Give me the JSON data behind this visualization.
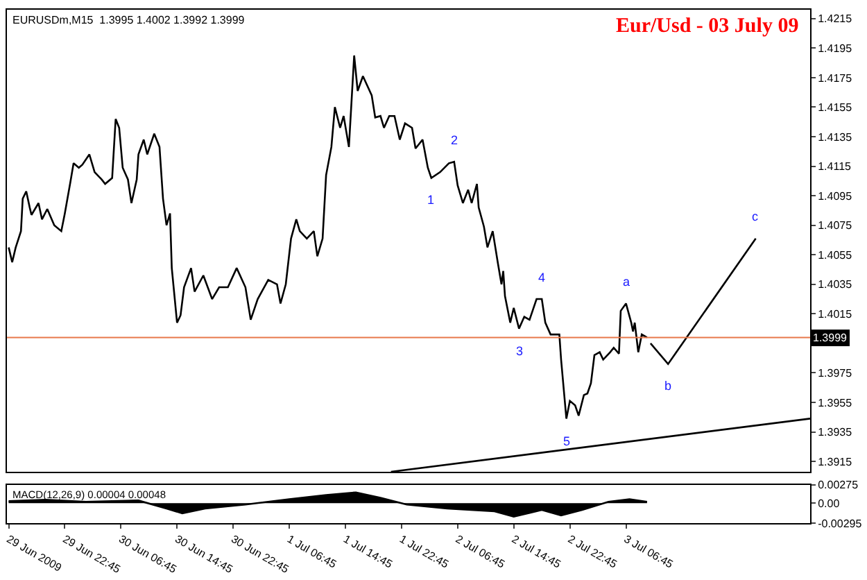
{
  "chart_data": [
    {
      "type": "line",
      "title": "Eur/Usd - 03 July 09",
      "annotations": [
        "EURUSDm,M15  1.3995 1.4002 1.3992 1.3999",
        {
          "text": "1",
          "x": "2009-07-02T03:00",
          "y": 1.4107
        },
        {
          "text": "2",
          "x": "2009-07-02T06:15",
          "y": 1.4118
        },
        {
          "text": "3",
          "x": "2009-07-02T15:30",
          "y": 1.4005
        },
        {
          "text": "4",
          "x": "2009-07-02T18:45",
          "y": 1.4025
        },
        {
          "text": "5",
          "x": "2009-07-02T22:15",
          "y": 1.3944
        },
        {
          "text": "a",
          "x": "2009-07-03T06:45",
          "y": 1.4022
        },
        {
          "text": "b",
          "x": "2009-07-03T12:45",
          "y": 1.3981
        },
        {
          "text": "c",
          "x": "2009-07-04T01:15",
          "y": 1.4066
        }
      ],
      "series": [
        {
          "color": "#000000",
          "x": [
            "2009-06-29T14:45",
            "2009-06-29T15:15",
            "2009-06-29T15:45",
            "2009-06-29T16:30",
            "2009-06-29T16:45",
            "2009-06-29T17:15",
            "2009-06-29T17:45",
            "2009-06-29T18:00",
            "2009-06-29T19:00",
            "2009-06-29T19:30",
            "2009-06-29T20:15",
            "2009-06-29T21:15",
            "2009-06-29T22:15",
            "2009-06-29T22:45",
            "2009-06-29T23:30",
            "2009-06-30T00:00",
            "2009-06-30T00:45",
            "2009-06-30T01:15",
            "2009-06-30T02:15",
            "2009-06-30T03:00",
            "2009-06-30T04:00",
            "2009-06-30T04:30",
            "2009-06-30T05:30",
            "2009-06-30T06:00",
            "2009-06-30T06:30",
            "2009-06-30T07:00",
            "2009-06-30T07:45",
            "2009-06-30T08:15",
            "2009-06-30T09:00",
            "2009-06-30T09:15",
            "2009-06-30T10:00",
            "2009-06-30T10:30",
            "2009-06-30T11:30",
            "2009-06-30T12:15",
            "2009-06-30T12:45",
            "2009-06-30T13:15",
            "2009-06-30T13:45",
            "2009-06-30T14:00",
            "2009-06-30T14:45",
            "2009-06-30T15:15",
            "2009-06-30T15:45",
            "2009-06-30T16:45",
            "2009-06-30T17:15",
            "2009-06-30T18:30",
            "2009-06-30T19:45",
            "2009-06-30T20:45",
            "2009-06-30T22:00",
            "2009-06-30T23:15",
            "2009-07-01T00:30",
            "2009-07-01T01:15",
            "2009-07-01T02:15",
            "2009-07-01T03:45",
            "2009-07-01T05:00",
            "2009-07-01T05:30",
            "2009-07-01T06:15",
            "2009-07-01T07:00",
            "2009-07-01T07:45",
            "2009-07-01T08:15",
            "2009-07-01T09:15",
            "2009-07-01T10:15",
            "2009-07-01T10:45",
            "2009-07-01T11:30",
            "2009-07-01T12:00",
            "2009-07-01T12:45",
            "2009-07-01T13:15",
            "2009-07-01T14:00",
            "2009-07-01T14:30",
            "2009-07-01T15:15",
            "2009-07-01T16:00",
            "2009-07-01T16:30",
            "2009-07-01T17:15",
            "2009-07-01T18:30",
            "2009-07-01T19:00",
            "2009-07-01T19:45",
            "2009-07-01T20:15",
            "2009-07-01T21:00",
            "2009-07-01T21:45",
            "2009-07-01T22:30",
            "2009-07-01T23:15",
            "2009-07-02T00:15",
            "2009-07-02T00:45",
            "2009-07-02T01:45",
            "2009-07-02T02:30",
            "2009-07-02T03:00",
            "2009-07-02T04:15",
            "2009-07-02T05:30",
            "2009-07-02T06:15",
            "2009-07-02T06:45",
            "2009-07-02T07:30",
            "2009-07-02T08:15",
            "2009-07-02T08:45",
            "2009-07-02T09:30",
            "2009-07-02T09:45",
            "2009-07-02T10:30",
            "2009-07-02T11:00",
            "2009-07-02T11:45",
            "2009-07-02T12:30",
            "2009-07-02T13:00",
            "2009-07-02T13:15",
            "2009-07-02T13:30",
            "2009-07-02T14:15",
            "2009-07-02T14:45",
            "2009-07-02T15:30",
            "2009-07-02T16:15",
            "2009-07-02T17:00",
            "2009-07-02T18:00",
            "2009-07-02T18:45",
            "2009-07-02T19:15",
            "2009-07-02T20:00",
            "2009-07-02T21:15",
            "2009-07-02T21:30",
            "2009-07-02T22:15",
            "2009-07-02T22:45",
            "2009-07-02T23:30",
            "2009-07-03T00:00",
            "2009-07-03T00:45",
            "2009-07-03T01:15",
            "2009-07-03T01:45",
            "2009-07-03T02:15",
            "2009-07-03T03:00",
            "2009-07-03T03:30",
            "2009-07-03T04:30",
            "2009-07-03T05:00",
            "2009-07-03T05:45",
            "2009-07-03T06:00",
            "2009-07-03T06:45",
            "2009-07-03T07:30",
            "2009-07-03T07:45",
            "2009-07-03T08:00",
            "2009-07-03T08:30",
            "2009-07-03T09:00",
            "2009-07-03T09:45"
          ],
          "values": [
            1.406,
            1.405,
            1.406,
            1.4071,
            1.4093,
            1.4098,
            1.4087,
            1.4082,
            1.409,
            1.4079,
            1.4086,
            1.4075,
            1.4071,
            1.4083,
            1.4103,
            1.4117,
            1.4114,
            1.4116,
            1.4123,
            1.4111,
            1.4106,
            1.4103,
            1.4107,
            1.4147,
            1.4141,
            1.4114,
            1.4106,
            1.409,
            1.4106,
            1.4123,
            1.4133,
            1.4123,
            1.4137,
            1.4128,
            1.4093,
            1.4075,
            1.4083,
            1.4046,
            1.4009,
            1.4014,
            1.4033,
            1.4046,
            1.403,
            1.4041,
            1.4025,
            1.4033,
            1.4033,
            1.4046,
            1.4033,
            1.4011,
            1.4025,
            1.4038,
            1.4035,
            1.4022,
            1.4035,
            1.4066,
            1.4079,
            1.4071,
            1.4066,
            1.4071,
            1.4054,
            1.4066,
            1.4109,
            1.4128,
            1.4155,
            1.4141,
            1.4149,
            1.4128,
            1.419,
            1.4166,
            1.4176,
            1.4163,
            1.4148,
            1.4149,
            1.4141,
            1.4149,
            1.4149,
            1.4133,
            1.4144,
            1.4141,
            1.4127,
            1.4133,
            1.4114,
            1.4107,
            1.4111,
            1.4117,
            1.4118,
            1.4102,
            1.409,
            1.4099,
            1.409,
            1.4103,
            1.4087,
            1.4074,
            1.406,
            1.4071,
            1.4049,
            1.4035,
            1.4044,
            1.4027,
            1.4009,
            1.4019,
            1.4005,
            1.4013,
            1.4011,
            1.4025,
            1.4025,
            1.4009,
            1.4001,
            1.4001,
            1.3984,
            1.3944,
            1.3956,
            1.3953,
            1.3946,
            1.396,
            1.3961,
            1.3968,
            1.3987,
            1.3989,
            1.3984,
            1.3989,
            1.3992,
            1.3988,
            1.4017,
            1.4022,
            1.4009,
            1.4003,
            1.4009,
            1.3989,
            1.4001,
            1.3999
          ]
        },
        {
          "color": "#000000",
          "x": [
            "2009-07-03T10:15",
            "2009-07-03T12:45",
            "2009-07-04T01:15"
          ],
          "values": [
            1.3995,
            1.3981,
            1.4066
          ]
        },
        {
          "color": "#000000",
          "x": [
            "2009-07-01T21:15",
            "2009-07-04T09:00"
          ],
          "values": [
            1.3908,
            1.3944
          ]
        }
      ],
      "ref_lines": [
        {
          "axis": "y",
          "value": 1.3999,
          "label": "1.3999",
          "color": "#e8784a"
        }
      ],
      "xlim": [
        "2009-06-29T14:30",
        "2009-07-04T09:00"
      ],
      "ylim": [
        1.3908,
        1.4221
      ],
      "yticks": [
        1.3915,
        1.3935,
        1.3955,
        1.3975,
        1.4015,
        1.4035,
        1.4055,
        1.4075,
        1.4095,
        1.4115,
        1.4135,
        1.4155,
        1.4175,
        1.4195,
        1.4215
      ],
      "tick_labels": "y"
    },
    {
      "type": "area",
      "annotations": [
        "MACD(12,26,9) 0.00004 0.00048"
      ],
      "x": [
        "2009-06-29T14:45",
        "2009-06-29T20:00",
        "2009-06-30T01:45",
        "2009-06-30T09:15",
        "2009-06-30T13:15",
        "2009-06-30T15:30",
        "2009-06-30T18:45",
        "2009-07-01T00:30",
        "2009-07-01T06:45",
        "2009-07-01T12:00",
        "2009-07-01T16:15",
        "2009-07-01T19:45",
        "2009-07-01T23:30",
        "2009-07-02T05:15",
        "2009-07-02T12:00",
        "2009-07-02T14:45",
        "2009-07-02T18:45",
        "2009-07-02T21:30",
        "2009-07-03T00:30",
        "2009-07-03T04:15",
        "2009-07-03T07:15",
        "2009-07-03T09:45"
      ],
      "values": [
        0.0003,
        0.0005,
        0.0002,
        0.0004,
        -0.0008,
        -0.0015,
        -0.0008,
        -0.0002,
        0.0006,
        0.0012,
        0.0016,
        0.0008,
        -0.0002,
        -0.0008,
        -0.0012,
        -0.002,
        -0.001,
        -0.0018,
        -0.001,
        0.0002,
        0.0006,
        0.0002
      ],
      "color": "#000000",
      "xlim": [
        "2009-06-29T14:30",
        "2009-07-04T09:00"
      ],
      "xticks": [
        {
          "value": "2009-06-29T14:45",
          "label": "29 Jun 2009"
        },
        {
          "value": "2009-06-29T22:45",
          "label": "29 Jun 22:45"
        },
        {
          "value": "2009-06-30T06:45",
          "label": "30 Jun 06:45"
        },
        {
          "value": "2009-06-30T14:45",
          "label": "30 Jun 14:45"
        },
        {
          "value": "2009-06-30T22:45",
          "label": "30 Jun 22:45"
        },
        {
          "value": "2009-07-01T06:45",
          "label": "1 Jul 06:45"
        },
        {
          "value": "2009-07-01T14:45",
          "label": "1 Jul 14:45"
        },
        {
          "value": "2009-07-01T22:45",
          "label": "1 Jul 22:45"
        },
        {
          "value": "2009-07-02T06:45",
          "label": "2 Jul 06:45"
        },
        {
          "value": "2009-07-02T14:45",
          "label": "2 Jul 14:45"
        },
        {
          "value": "2009-07-02T22:45",
          "label": "2 Jul 22:45"
        },
        {
          "value": "2009-07-03T06:45",
          "label": "3 Jul 06:45"
        }
      ],
      "ylim": [
        -0.00295,
        0.00275
      ],
      "yticks": [
        0.00275,
        {
          "value": 0,
          "label": "0.00"
        },
        -0.00295
      ]
    }
  ]
}
